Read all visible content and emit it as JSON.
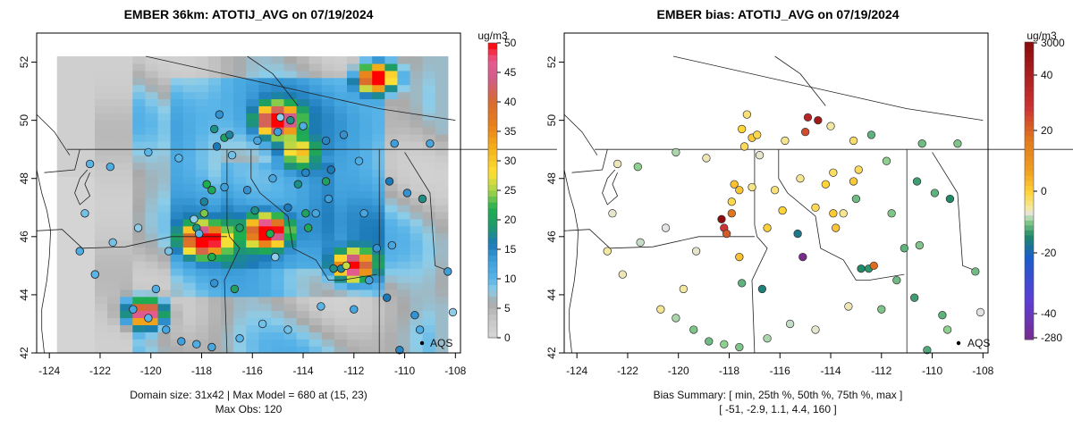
{
  "chart_data": [
    {
      "type": "heatmap",
      "title": "EMBER 36km: ATOTIJ_AVG on 07/19/2024",
      "unit_label": "ug/m3",
      "xlim": [
        -124.5,
        -107.8
      ],
      "ylim": [
        42,
        53
      ],
      "x_ticks": [
        -124,
        -122,
        -120,
        -118,
        -116,
        -114,
        -112,
        -110,
        -108
      ],
      "x_tick_labels": [
        "-124",
        "-122",
        "-120",
        "-118",
        "-116",
        "-114",
        "-112",
        "-110",
        "-108"
      ],
      "y_ticks": [
        42,
        44,
        46,
        48,
        50,
        52
      ],
      "y_tick_labels": [
        "42",
        "44",
        "46",
        "48",
        "50",
        "52"
      ],
      "colorbar_ticks": [
        0,
        5,
        10,
        15,
        20,
        25,
        30,
        35,
        40,
        45,
        50
      ],
      "colorbar_tick_labels": [
        "0",
        "5",
        "10",
        "15",
        "20",
        "25",
        "30",
        "35",
        "40",
        "45",
        "50"
      ],
      "colorbar_range": [
        0,
        50
      ],
      "domain_size": "31x42",
      "max_model": 680,
      "max_model_cell": "(15, 23)",
      "max_obs": 120,
      "footer_line1": "Domain size: 31x42 | Max Model = 680 at (15, 23)",
      "footer_line2": "Max Obs: 120",
      "legend_label": "AQS",
      "hotspots": [
        {
          "lon": -115.0,
          "lat": 50.0,
          "value": 50
        },
        {
          "lon": -115.4,
          "lat": 46.2,
          "value": 50
        },
        {
          "lon": -117.9,
          "lat": 45.9,
          "value": 50
        },
        {
          "lon": -120.2,
          "lat": 43.4,
          "value": 50
        },
        {
          "lon": -112.0,
          "lat": 45.0,
          "value": 45
        },
        {
          "lon": -111.1,
          "lat": 51.5,
          "value": 50
        },
        {
          "lon": -114.2,
          "lat": 48.9,
          "value": 20
        }
      ]
    },
    {
      "type": "scatter",
      "title": "EMBER bias: ATOTIJ_AVG on 07/19/2024",
      "unit_label": "ug/m3",
      "xlim": [
        -124.5,
        -107.8
      ],
      "ylim": [
        42,
        53
      ],
      "x_ticks": [
        -124,
        -122,
        -120,
        -118,
        -116,
        -114,
        -112,
        -110,
        -108
      ],
      "x_tick_labels": [
        "-124",
        "-122",
        "-120",
        "-118",
        "-116",
        "-114",
        "-112",
        "-110",
        "-108"
      ],
      "y_ticks": [
        42,
        44,
        46,
        48,
        50,
        52
      ],
      "y_tick_labels": [
        "42",
        "44",
        "46",
        "48",
        "50",
        "52"
      ],
      "colorbar_tick_labels": [
        "3000",
        "40",
        "20",
        "0",
        "-20",
        "-40",
        "-280"
      ],
      "bias_summary_labels": [
        "min",
        "25th %",
        "50th %",
        "75th %",
        "max"
      ],
      "bias_summary_values": [
        -51,
        -2.9,
        1.1,
        4.4,
        160
      ],
      "footer_line1": "Bias Summary: [ min, 25th %, 50th %, 75th %, max ]",
      "footer_line2": "[ -51,   -2.9,   1.1,   4.4,   160 ]",
      "legend_label": "AQS",
      "points": [
        {
          "lon": -117.3,
          "lat": 50.2,
          "bias": 6
        },
        {
          "lon": -117.5,
          "lat": 49.7,
          "bias": 10
        },
        {
          "lon": -117.1,
          "lat": 49.4,
          "bias": 12
        },
        {
          "lon": -116.9,
          "lat": 49.5,
          "bias": 9
        },
        {
          "lon": -117.4,
          "lat": 49.1,
          "bias": 8
        },
        {
          "lon": -114.9,
          "lat": 50.1,
          "bias": 60
        },
        {
          "lon": -114.5,
          "lat": 50.0,
          "bias": 70
        },
        {
          "lon": -115.0,
          "lat": 49.6,
          "bias": 45
        },
        {
          "lon": -117.8,
          "lat": 47.8,
          "bias": 14
        },
        {
          "lon": -117.6,
          "lat": 47.6,
          "bias": 13
        },
        {
          "lon": -117.9,
          "lat": 47.2,
          "bias": 9
        },
        {
          "lon": -118.3,
          "lat": 46.6,
          "bias": 80
        },
        {
          "lon": -118.2,
          "lat": 46.3,
          "bias": 50
        },
        {
          "lon": -118.1,
          "lat": 46.1,
          "bias": 42
        },
        {
          "lon": -117.9,
          "lat": 46.8,
          "bias": 36
        },
        {
          "lon": -117.6,
          "lat": 45.3,
          "bias": 14
        },
        {
          "lon": -117.5,
          "lat": 44.4,
          "bias": -6
        },
        {
          "lon": -116.5,
          "lat": 46.3,
          "bias": 11
        },
        {
          "lon": -116.7,
          "lat": 44.2,
          "bias": -12
        },
        {
          "lon": -115.3,
          "lat": 46.1,
          "bias": -14
        },
        {
          "lon": -115.1,
          "lat": 45.3,
          "bias": -80
        },
        {
          "lon": -113.9,
          "lat": 46.8,
          "bias": 12
        },
        {
          "lon": -113.8,
          "lat": 46.3,
          "bias": 13
        },
        {
          "lon": -112.8,
          "lat": 44.9,
          "bias": -10
        },
        {
          "lon": -112.5,
          "lat": 44.9,
          "bias": -9
        },
        {
          "lon": -112.3,
          "lat": 45.0,
          "bias": 38
        },
        {
          "lon": -117.1,
          "lat": 47.7,
          "bias": 5
        },
        {
          "lon": -116.2,
          "lat": 47.6,
          "bias": 6
        },
        {
          "lon": -115.2,
          "lat": 48.0,
          "bias": 4
        },
        {
          "lon": -114.2,
          "lat": 47.8,
          "bias": 10
        },
        {
          "lon": -113.9,
          "lat": 48.2,
          "bias": 7
        },
        {
          "lon": -113.1,
          "lat": 47.9,
          "bias": 12
        },
        {
          "lon": -112.9,
          "lat": 48.3,
          "bias": 8
        },
        {
          "lon": -111.8,
          "lat": 48.6,
          "bias": -3
        },
        {
          "lon": -111.6,
          "lat": 46.8,
          "bias": -4
        },
        {
          "lon": -110.6,
          "lat": 47.9,
          "bias": -8
        },
        {
          "lon": -109.9,
          "lat": 47.5,
          "bias": -6
        },
        {
          "lon": -109.3,
          "lat": 47.3,
          "bias": -10
        },
        {
          "lon": -110.4,
          "lat": 49.2,
          "bias": -5
        },
        {
          "lon": -109.0,
          "lat": 49.2,
          "bias": -4
        },
        {
          "lon": -112.4,
          "lat": 49.5,
          "bias": -6
        },
        {
          "lon": -113.1,
          "lat": 49.3,
          "bias": 7
        },
        {
          "lon": -114.0,
          "lat": 49.8,
          "bias": 3
        },
        {
          "lon": -115.8,
          "lat": 49.3,
          "bias": 4
        },
        {
          "lon": -116.8,
          "lat": 48.8,
          "bias": 1
        },
        {
          "lon": -118.9,
          "lat": 48.7,
          "bias": 2
        },
        {
          "lon": -120.1,
          "lat": 48.9,
          "bias": -2
        },
        {
          "lon": -121.6,
          "lat": 48.4,
          "bias": -3
        },
        {
          "lon": -122.4,
          "lat": 48.5,
          "bias": 2
        },
        {
          "lon": -122.6,
          "lat": 46.8,
          "bias": 1
        },
        {
          "lon": -122.8,
          "lat": 45.5,
          "bias": 3
        },
        {
          "lon": -122.2,
          "lat": 44.7,
          "bias": 2
        },
        {
          "lon": -121.5,
          "lat": 45.8,
          "bias": -1
        },
        {
          "lon": -120.5,
          "lat": 46.3,
          "bias": 0
        },
        {
          "lon": -119.3,
          "lat": 45.5,
          "bias": 1
        },
        {
          "lon": -119.8,
          "lat": 44.2,
          "bias": 3
        },
        {
          "lon": -120.7,
          "lat": 43.5,
          "bias": 4
        },
        {
          "lon": -120.1,
          "lat": 43.2,
          "bias": -2
        },
        {
          "lon": -119.4,
          "lat": 42.8,
          "bias": -4
        },
        {
          "lon": -118.8,
          "lat": 42.4,
          "bias": -5
        },
        {
          "lon": -118.2,
          "lat": 42.3,
          "bias": -3
        },
        {
          "lon": -117.6,
          "lat": 42.2,
          "bias": -4
        },
        {
          "lon": -116.5,
          "lat": 42.5,
          "bias": -2
        },
        {
          "lon": -115.6,
          "lat": 43.0,
          "bias": -1
        },
        {
          "lon": -114.6,
          "lat": 42.8,
          "bias": 1
        },
        {
          "lon": -113.3,
          "lat": 43.6,
          "bias": 2
        },
        {
          "lon": -112.0,
          "lat": 43.5,
          "bias": -4
        },
        {
          "lon": -111.4,
          "lat": 44.5,
          "bias": -5
        },
        {
          "lon": -110.7,
          "lat": 43.9,
          "bias": -8
        },
        {
          "lon": -109.6,
          "lat": 43.3,
          "bias": -6
        },
        {
          "lon": -109.4,
          "lat": 42.8,
          "bias": -3
        },
        {
          "lon": -110.2,
          "lat": 42.1,
          "bias": -7
        },
        {
          "lon": -108.3,
          "lat": 44.8,
          "bias": -5
        },
        {
          "lon": -108.1,
          "lat": 43.4,
          "bias": 0
        },
        {
          "lon": -110.5,
          "lat": 45.7,
          "bias": -4
        },
        {
          "lon": -111.1,
          "lat": 45.6,
          "bias": -6
        },
        {
          "lon": -113.5,
          "lat": 46.8,
          "bias": 4
        },
        {
          "lon": -113.0,
          "lat": 47.3,
          "bias": -5
        },
        {
          "lon": -114.6,
          "lat": 47.0,
          "bias": 8
        },
        {
          "lon": -115.9,
          "lat": 46.9,
          "bias": 10
        }
      ]
    }
  ]
}
